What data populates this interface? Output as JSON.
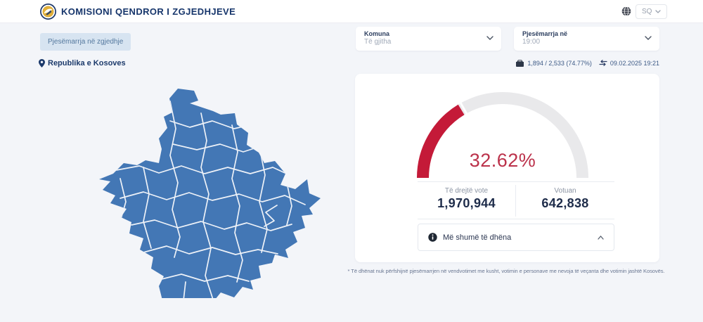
{
  "header": {
    "title": "KOMISIONI QENDROR I ZGJEDHJEVE",
    "language": "SQ"
  },
  "tab": {
    "label": "Pjesëmarrja në zgjedhje"
  },
  "filters": {
    "municipality": {
      "label": "Komuna",
      "value": "Të gjitha"
    },
    "time": {
      "label": "Pjesëmarrja në",
      "value": "19:00"
    }
  },
  "region_label": "Republika e Kosoves",
  "meta": {
    "polling_stations": "1,894 / 2,533 (74.77%)",
    "last_update": "09.02.2025 19:21"
  },
  "stats": {
    "eligible": {
      "label": "Të drejtë vote",
      "value": "1,970,944"
    },
    "voted": {
      "label": "Votuan",
      "value": "642,838"
    }
  },
  "more_data": {
    "label": "Më shumë të dhëna"
  },
  "footnote": "* Të dhënat nuk përfshijnë pjesëmarrjen në vendvotimet me kusht, votimin e personave me nevoja të veçanta dhe votimin jashtë Kosovës.",
  "chart_data": {
    "type": "gauge",
    "value": 32.62,
    "min": 0,
    "max": 100,
    "unit": "%",
    "label": "32.62%",
    "title": "Pjesëmarrja në zgjedhje",
    "arc_color": "#c41a38",
    "track_color": "#e9e9eb",
    "context": {
      "eligible_voters": 1970944,
      "voted": 642838
    }
  },
  "colors": {
    "map_fill": "#4377b5",
    "map_border": "#eef2f8",
    "accent_navy": "#16356b",
    "gauge_red": "#c41a38",
    "tab_bg": "#d7e4f1"
  }
}
